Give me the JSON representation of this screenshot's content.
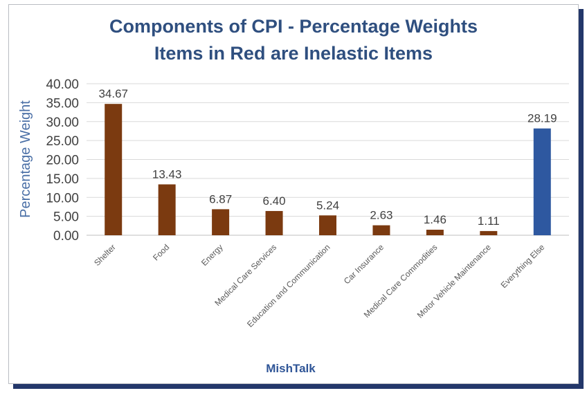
{
  "chart_data": {
    "type": "bar",
    "title": "Components of CPI - Percentage Weights",
    "subtitle": "Items in Red are Inelastic Items",
    "ylabel": "Percentage Weight",
    "xlabel": "MishTalk",
    "ylim": [
      0,
      40
    ],
    "yticks": [
      "0.00",
      "5.00",
      "10.00",
      "15.00",
      "20.00",
      "25.00",
      "30.00",
      "35.00",
      "40.00"
    ],
    "grid": true,
    "categories": [
      "Shelter",
      "Food",
      "Energy",
      "Medical Care Services",
      "Education and Communication",
      "Car Insurance",
      "Medical Care Commodities",
      "Motor Vehicle Maintenance",
      "Everything Else"
    ],
    "values": [
      34.67,
      13.43,
      6.87,
      6.4,
      5.24,
      2.63,
      1.46,
      1.11,
      28.19
    ],
    "value_labels": [
      "34.67",
      "13.43",
      "6.87",
      "6.40",
      "5.24",
      "2.63",
      "1.46",
      "1.11",
      "28.19"
    ],
    "bar_colors": [
      "#7b3a10",
      "#7b3a10",
      "#7b3a10",
      "#7b3a10",
      "#7b3a10",
      "#7b3a10",
      "#7b3a10",
      "#7b3a10",
      "#2e58a0"
    ]
  }
}
